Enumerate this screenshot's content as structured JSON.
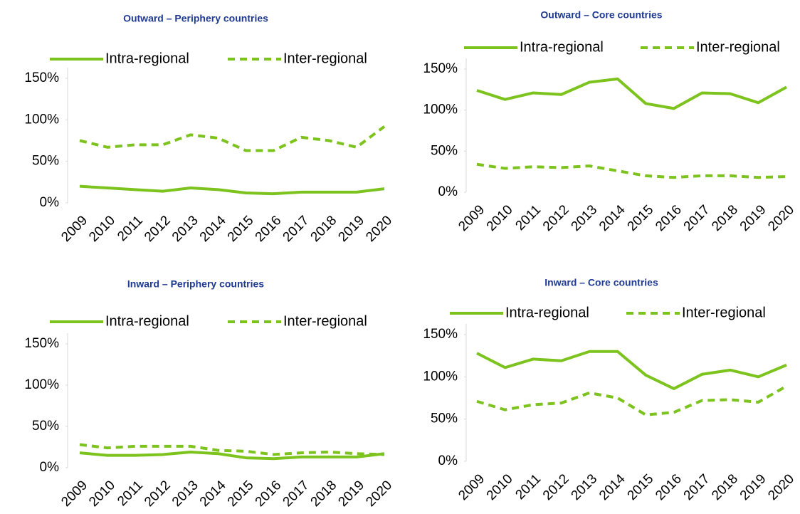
{
  "chart_data": [
    {
      "type": "line",
      "title": "Outward – Periphery countries",
      "categories": [
        "2009",
        "2010",
        "2011",
        "2012",
        "2013",
        "2014",
        "2015",
        "2016",
        "2017",
        "2018",
        "2019",
        "2020"
      ],
      "series": [
        {
          "name": "Intra-regional",
          "color": "#7dc31e",
          "dash": false,
          "values": [
            20,
            18,
            16,
            14,
            18,
            16,
            12,
            11,
            13,
            13,
            13,
            17
          ]
        },
        {
          "name": "Inter-regional",
          "color": "#7dc31e",
          "dash": true,
          "values": [
            75,
            67,
            70,
            70,
            82,
            78,
            63,
            63,
            79,
            75,
            67,
            92
          ]
        }
      ],
      "ylim": [
        0,
        150
      ],
      "yticks": [
        {
          "value": 0,
          "label": "0%"
        },
        {
          "value": 50,
          "label": "50%"
        },
        {
          "value": 100,
          "label": "100%"
        },
        {
          "value": 150,
          "label": "150%"
        }
      ],
      "legend": "top"
    },
    {
      "type": "line",
      "title": "Outward – Core countries",
      "categories": [
        "2009",
        "2010",
        "2011",
        "2012",
        "2013",
        "2014",
        "2015",
        "2016",
        "2017",
        "2018",
        "2019",
        "2020"
      ],
      "series": [
        {
          "name": "Intra-regional",
          "color": "#7dc31e",
          "dash": false,
          "values": [
            124,
            113,
            121,
            119,
            134,
            138,
            108,
            102,
            121,
            120,
            109,
            128
          ]
        },
        {
          "name": "Inter-regional",
          "color": "#7dc31e",
          "dash": true,
          "values": [
            34,
            29,
            31,
            30,
            32,
            26,
            20,
            18,
            20,
            20,
            18,
            19
          ]
        }
      ],
      "ylim": [
        0,
        150
      ],
      "yticks": [
        {
          "value": 0,
          "label": "0%"
        },
        {
          "value": 50,
          "label": "50%"
        },
        {
          "value": 100,
          "label": "100%"
        },
        {
          "value": 150,
          "label": "150%"
        }
      ],
      "legend": "top"
    },
    {
      "type": "line",
      "title": "Inward – Periphery countries",
      "categories": [
        "2009",
        "2010",
        "2011",
        "2012",
        "2013",
        "2014",
        "2015",
        "2016",
        "2017",
        "2018",
        "2019",
        "2020"
      ],
      "series": [
        {
          "name": "Intra-regional",
          "color": "#7dc31e",
          "dash": false,
          "values": [
            18,
            15,
            15,
            16,
            19,
            17,
            12,
            11,
            13,
            13,
            13,
            17
          ]
        },
        {
          "name": "Inter-regional",
          "color": "#7dc31e",
          "dash": true,
          "values": [
            28,
            24,
            26,
            26,
            26,
            21,
            20,
            16,
            18,
            19,
            17,
            16
          ]
        }
      ],
      "ylim": [
        0,
        150
      ],
      "yticks": [
        {
          "value": 0,
          "label": "0%"
        },
        {
          "value": 50,
          "label": "50%"
        },
        {
          "value": 100,
          "label": "100%"
        },
        {
          "value": 150,
          "label": "150%"
        }
      ],
      "legend": "top"
    },
    {
      "type": "line",
      "title": "Inward – Core countries",
      "categories": [
        "2009",
        "2010",
        "2011",
        "2012",
        "2013",
        "2014",
        "2015",
        "2016",
        "2017",
        "2018",
        "2019",
        "2020"
      ],
      "series": [
        {
          "name": "Intra-regional",
          "color": "#7dc31e",
          "dash": false,
          "values": [
            128,
            111,
            121,
            119,
            130,
            130,
            102,
            86,
            103,
            108,
            100,
            114
          ]
        },
        {
          "name": "Inter-regional",
          "color": "#7dc31e",
          "dash": true,
          "values": [
            71,
            61,
            67,
            69,
            81,
            75,
            55,
            58,
            72,
            73,
            70,
            89
          ]
        }
      ],
      "ylim": [
        0,
        150
      ],
      "yticks": [
        {
          "value": 0,
          "label": "0%"
        },
        {
          "value": 50,
          "label": "50%"
        },
        {
          "value": 100,
          "label": "100%"
        },
        {
          "value": 150,
          "label": "150%"
        }
      ],
      "legend": "top"
    }
  ]
}
